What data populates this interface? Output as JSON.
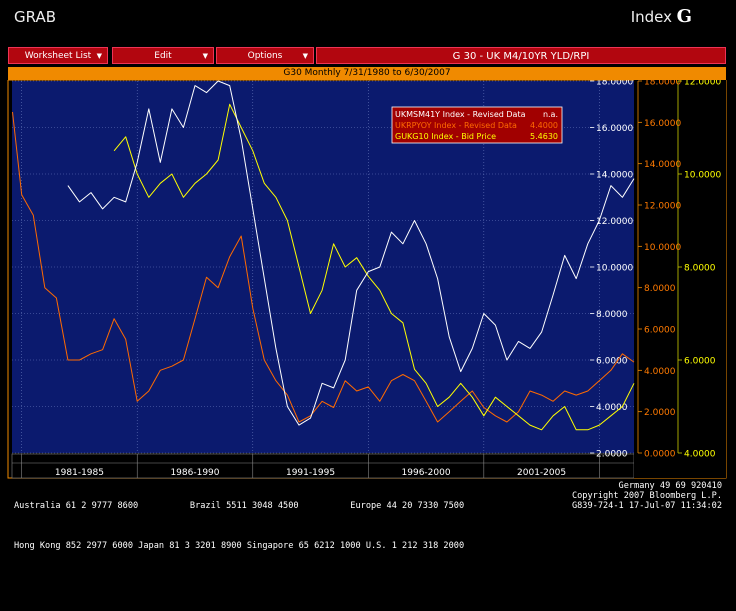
{
  "header": {
    "left_label": "GRAB",
    "right_label": "Index",
    "logo_glyph": "G"
  },
  "menu": {
    "worksheet_label": "Worksheet List",
    "edit_label": "Edit",
    "options_label": "Options",
    "title": "G 30 - UK M4/10YR YLD/RPI"
  },
  "period_label": "G30 Monthly 7/31/1980 to 6/30/2007",
  "colors": {
    "bg_plot": "#0b1a6e",
    "white_series": "#ffffff",
    "orange_series": "#ff6a00",
    "yellow_series": "#ffff00",
    "menu_red": "#b2060f",
    "orange_bar": "#f08a00"
  },
  "footer": {
    "line1_left": "Australia 61 2 9777 8600          Brazil 5511 3048 4500          Europe 44 20 7330 7500",
    "line1_right": "Germany 49 69 920410",
    "line2_left": "Hong Kong 852 2977 6000 Japan 81 3 3201 8900 Singapore 65 6212 1000 U.S. 1 212 318 2000",
    "line2_right": "Copyright 2007 Bloomberg L.P.",
    "line3_right": "G839-724-1 17-Jul-07 11:34:02"
  },
  "chart_data": {
    "type": "line",
    "x_range": [
      1980.58,
      2007.5
    ],
    "x_groups": [
      {
        "label": "1981-1985",
        "start": 1981.0,
        "end": 1986.0
      },
      {
        "label": "1986-1990",
        "start": 1986.0,
        "end": 1991.0
      },
      {
        "label": "1991-1995",
        "start": 1991.0,
        "end": 1996.0
      },
      {
        "label": "1996-2000",
        "start": 1996.0,
        "end": 2001.0
      },
      {
        "label": "2001-2005",
        "start": 2001.0,
        "end": 2006.0
      }
    ],
    "axes": {
      "white": {
        "ylim": [
          2.0,
          18.0
        ],
        "ticks": [
          "2.0000",
          "4.0000",
          "6.0000",
          "8.0000",
          "10.0000",
          "12.0000",
          "14.0000",
          "16.0000",
          "18.0000"
        ],
        "side": "left-inner"
      },
      "orange": {
        "ylim": [
          0.0,
          18.0
        ],
        "ticks": [
          "0.0000",
          "2.0000",
          "4.0000",
          "6.0000",
          "8.0000",
          "10.0000",
          "12.0000",
          "14.0000",
          "16.0000",
          "18.0000"
        ],
        "side": "right"
      },
      "yellow": {
        "ylim": [
          4.0,
          12.0
        ],
        "ticks": [
          "4.0000",
          "6.0000",
          "8.0000",
          "10.0000",
          "12.0000"
        ],
        "side": "far-right"
      }
    },
    "legend": {
      "placement": "top-right",
      "items": [
        {
          "name": "UKMSM41Y Index - Revised Data",
          "value": "n.a.",
          "color": "#ffffff"
        },
        {
          "name": "UKRPYOY Index - Revised Data",
          "value": "4.4000",
          "color": "#ff6a00"
        },
        {
          "name": "GUKG10 Index - Bid Price",
          "value": "5.4630",
          "color": "#ffff00"
        }
      ]
    },
    "series": [
      {
        "name": "UKMSM41Y Index - Revised Data",
        "color": "#ffffff",
        "axis": "white",
        "x": [
          1983.0,
          1983.5,
          1984.0,
          1984.5,
          1985.0,
          1985.5,
          1986.0,
          1986.5,
          1987.0,
          1987.5,
          1988.0,
          1988.5,
          1989.0,
          1989.5,
          1990.0,
          1990.5,
          1991.0,
          1991.5,
          1992.0,
          1992.5,
          1993.0,
          1993.5,
          1994.0,
          1994.5,
          1995.0,
          1995.5,
          1996.0,
          1996.5,
          1997.0,
          1997.5,
          1998.0,
          1998.5,
          1999.0,
          1999.5,
          2000.0,
          2000.5,
          2001.0,
          2001.5,
          2002.0,
          2002.5,
          2003.0,
          2003.5,
          2004.0,
          2004.5,
          2005.0,
          2005.5,
          2006.0,
          2006.5,
          2007.0,
          2007.5
        ],
        "y": [
          13.5,
          12.8,
          13.2,
          12.5,
          13.0,
          12.8,
          14.5,
          16.8,
          14.5,
          16.8,
          16.0,
          17.8,
          17.5,
          18.0,
          17.8,
          15.5,
          12.5,
          9.5,
          6.5,
          4.0,
          3.2,
          3.5,
          5.0,
          4.8,
          6.0,
          9.0,
          9.8,
          10.0,
          11.5,
          11.0,
          12.0,
          11.0,
          9.5,
          7.0,
          5.5,
          6.5,
          8.0,
          7.5,
          6.0,
          6.8,
          6.5,
          7.2,
          8.8,
          10.5,
          9.5,
          11.0,
          12.0,
          13.5,
          13.0,
          13.8
        ]
      },
      {
        "name": "UKRPYOY Index - Revised Data",
        "color": "#ff6a00",
        "axis": "orange",
        "x": [
          1980.6,
          1981.0,
          1981.5,
          1982.0,
          1982.5,
          1983.0,
          1983.5,
          1984.0,
          1984.5,
          1985.0,
          1985.5,
          1986.0,
          1986.5,
          1987.0,
          1987.5,
          1988.0,
          1988.5,
          1989.0,
          1989.5,
          1990.0,
          1990.5,
          1991.0,
          1991.5,
          1992.0,
          1992.5,
          1993.0,
          1993.5,
          1994.0,
          1994.5,
          1995.0,
          1995.5,
          1996.0,
          1996.5,
          1997.0,
          1997.5,
          1998.0,
          1998.5,
          1999.0,
          1999.5,
          2000.0,
          2000.5,
          2001.0,
          2001.5,
          2002.0,
          2002.5,
          2003.0,
          2003.5,
          2004.0,
          2004.5,
          2005.0,
          2005.5,
          2006.0,
          2006.5,
          2007.0,
          2007.5
        ],
        "y": [
          16.5,
          12.5,
          11.5,
          8.0,
          7.5,
          4.5,
          4.5,
          4.8,
          5.0,
          6.5,
          5.5,
          2.5,
          3.0,
          4.0,
          4.2,
          4.5,
          6.5,
          8.5,
          8.0,
          9.5,
          10.5,
          7.0,
          4.5,
          3.5,
          2.8,
          1.5,
          1.8,
          2.5,
          2.2,
          3.5,
          3.0,
          3.2,
          2.5,
          3.5,
          3.8,
          3.5,
          2.5,
          1.5,
          2.0,
          2.5,
          3.0,
          2.2,
          1.8,
          1.5,
          2.0,
          3.0,
          2.8,
          2.5,
          3.0,
          2.8,
          3.0,
          3.5,
          4.0,
          4.8,
          4.4
        ]
      },
      {
        "name": "GUKG10 Index - Bid Price",
        "color": "#ffff00",
        "axis": "yellow",
        "x": [
          1985.0,
          1985.5,
          1986.0,
          1986.5,
          1987.0,
          1987.5,
          1988.0,
          1988.5,
          1989.0,
          1989.5,
          1990.0,
          1990.5,
          1991.0,
          1991.5,
          1992.0,
          1992.5,
          1993.0,
          1993.5,
          1994.0,
          1994.5,
          1995.0,
          1995.5,
          1996.0,
          1996.5,
          1997.0,
          1997.5,
          1998.0,
          1998.5,
          1999.0,
          1999.5,
          2000.0,
          2000.5,
          2001.0,
          2001.5,
          2002.0,
          2002.5,
          2003.0,
          2003.5,
          2004.0,
          2004.5,
          2005.0,
          2005.5,
          2006.0,
          2006.5,
          2007.0,
          2007.5
        ],
        "y": [
          10.5,
          10.8,
          10.0,
          9.5,
          9.8,
          10.0,
          9.5,
          9.8,
          10.0,
          10.3,
          11.5,
          11.0,
          10.5,
          9.8,
          9.5,
          9.0,
          8.0,
          7.0,
          7.5,
          8.5,
          8.0,
          8.2,
          7.8,
          7.5,
          7.0,
          6.8,
          5.8,
          5.5,
          5.0,
          5.2,
          5.5,
          5.2,
          4.8,
          5.2,
          5.0,
          4.8,
          4.6,
          4.5,
          4.8,
          5.0,
          4.5,
          4.5,
          4.6,
          4.8,
          5.0,
          5.5
        ]
      }
    ]
  }
}
